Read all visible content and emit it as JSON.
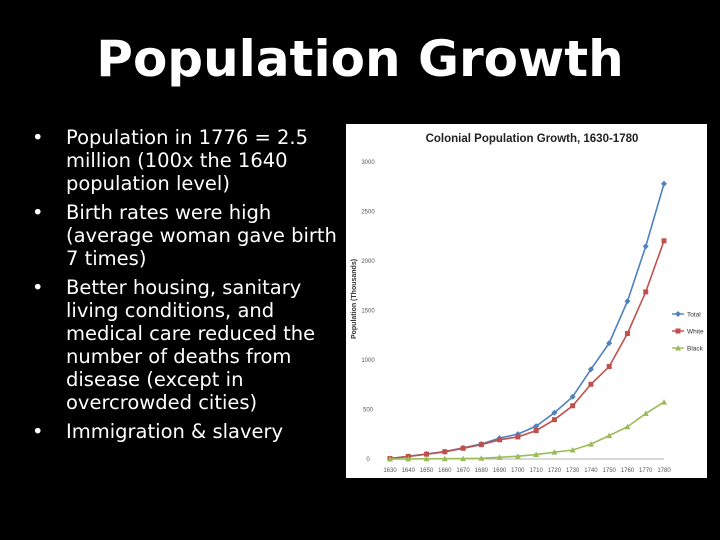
{
  "slide": {
    "title": "Population Growth",
    "bullets": [
      "Population in 1776 = 2.5 million (100x  the 1640 population level)",
      "Birth rates were high (average woman gave birth 7 times)",
      "Better housing, sanitary living conditions, and medical care reduced the number of deaths from disease (except in overcrowded cities)",
      "Immigration & slavery"
    ],
    "bullet_glyph": "•"
  },
  "chart_data": {
    "type": "line",
    "title": "Colonial Population Growth, 1630-1780",
    "xlabel": "",
    "ylabel": "Population (Thousands)",
    "x": [
      1630,
      1640,
      1650,
      1660,
      1670,
      1680,
      1690,
      1700,
      1710,
      1720,
      1730,
      1740,
      1750,
      1760,
      1770,
      1780
    ],
    "xlim": [
      1630,
      1780
    ],
    "ylim": [
      0,
      3000
    ],
    "yticks": [
      0,
      500,
      1000,
      1500,
      2000,
      2500,
      3000
    ],
    "grid": false,
    "legend": "right",
    "series": [
      {
        "name": "Total",
        "color": "#4f81bd",
        "marker": "diamond",
        "values": [
          5,
          27,
          50,
          75,
          112,
          152,
          211,
          251,
          332,
          467,
          629,
          906,
          1171,
          1594,
          2148,
          2780
        ]
      },
      {
        "name": "White",
        "color": "#c0504d",
        "marker": "square",
        "values": [
          5,
          26,
          49,
          73,
          108,
          145,
          194,
          223,
          287,
          397,
          538,
          755,
          934,
          1268,
          1688,
          2204
        ]
      },
      {
        "name": "Black",
        "color": "#9bbb59",
        "marker": "triangle",
        "values": [
          0,
          1,
          2,
          3,
          4,
          7,
          17,
          28,
          45,
          69,
          91,
          150,
          236,
          326,
          459,
          575
        ]
      }
    ]
  }
}
